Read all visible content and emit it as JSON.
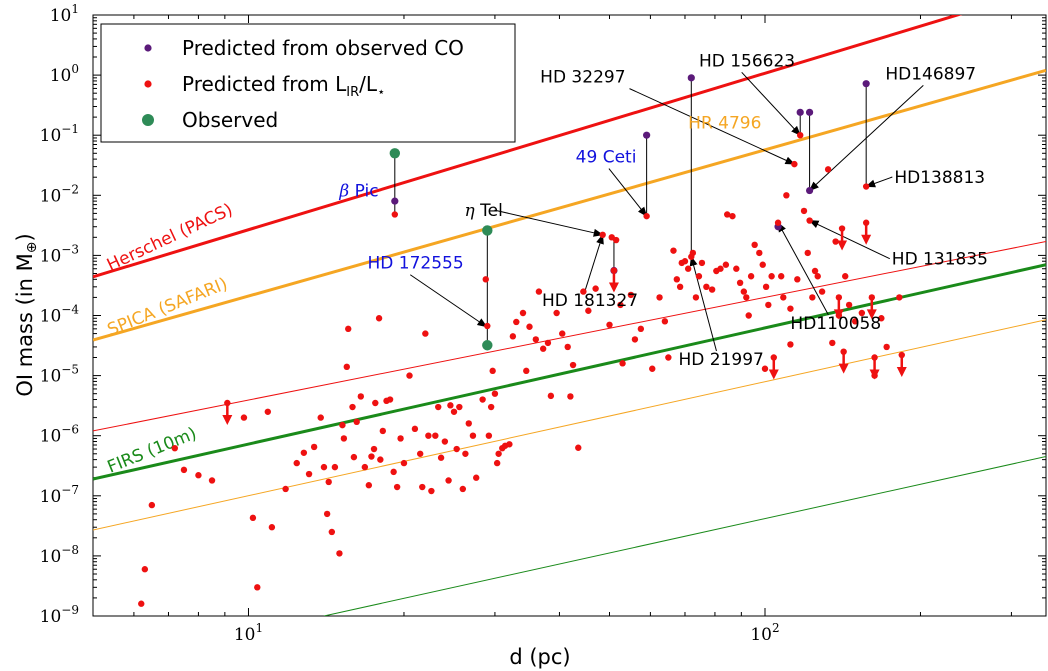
{
  "chart_data": {
    "type": "scatter",
    "xlabel": "d (pc)",
    "ylabel": "OI mass (in M",
    "ylabel_symbol": "⊕",
    "ylabel_close": ")",
    "xscale": "log",
    "yscale": "log",
    "xlim": [
      5.0,
      350.0
    ],
    "ylim": [
      1e-09,
      10
    ],
    "x_tick_labels": [
      {
        "value": 10,
        "mant": "10",
        "exp": "1"
      },
      {
        "value": 100,
        "mant": "10",
        "exp": "2"
      }
    ],
    "y_tick_labels": [
      {
        "value": 1e-09,
        "mant": "10",
        "exp": "−9"
      },
      {
        "value": 1e-08,
        "mant": "10",
        "exp": "−8"
      },
      {
        "value": 1e-07,
        "mant": "10",
        "exp": "−7"
      },
      {
        "value": 1e-06,
        "mant": "10",
        "exp": "−6"
      },
      {
        "value": 1e-05,
        "mant": "10",
        "exp": "−5"
      },
      {
        "value": 0.0001,
        "mant": "10",
        "exp": "−4"
      },
      {
        "value": 0.001,
        "mant": "10",
        "exp": "−3"
      },
      {
        "value": 0.01,
        "mant": "10",
        "exp": "−2"
      },
      {
        "value": 0.1,
        "mant": "10",
        "exp": "−1"
      },
      {
        "value": 1,
        "mant": "10",
        "exp": "0"
      },
      {
        "value": 10,
        "mant": "10",
        "exp": "1"
      }
    ],
    "colors": {
      "red": "#ee1111",
      "purple": "#5b1a7a",
      "green": "#2e8b57",
      "orange": "#f5a623",
      "dkgreen": "#1a8a1a",
      "blue": "#1111dd"
    },
    "legend": {
      "placement": "top-left",
      "entries": [
        {
          "label": "Predicted from observed CO",
          "color": "#5b1a7a",
          "size": "small"
        },
        {
          "label_pre": "Predicted from L",
          "label_sub": "IR",
          "label_post": "/L",
          "label_sub2": "⋆",
          "color": "#ee1111",
          "size": "small"
        },
        {
          "label": "Observed",
          "color": "#2e8b57",
          "size": "large"
        }
      ]
    },
    "sensitivity_lines": [
      {
        "name": "Herschel (PACS)",
        "color": "#ee1111",
        "width": 3,
        "points": [
          [
            5.0,
            0.00044
          ],
          [
            350.0,
            28.0
          ]
        ]
      },
      {
        "name": "SPICA (SAFARI)",
        "color": "#f5a623",
        "width": 3,
        "points": [
          [
            5.0,
            3.9e-05
          ],
          [
            350.0,
            1.2
          ]
        ]
      },
      {
        "name": "FIRS (10m)",
        "color": "#1a8a1a",
        "width": 3,
        "points": [
          [
            5.0,
            1.9e-07
          ],
          [
            350.0,
            0.0007
          ]
        ]
      },
      {
        "name": "",
        "color": "#ee1111",
        "width": 1,
        "points": [
          [
            5.0,
            1.2e-06
          ],
          [
            350.0,
            0.0017
          ]
        ]
      },
      {
        "name": "",
        "color": "#f5a623",
        "width": 1,
        "points": [
          [
            5.0,
            2.7e-08
          ],
          [
            350.0,
            8.5e-05
          ]
        ]
      },
      {
        "name": "",
        "color": "#1a8a1a",
        "width": 1,
        "points": [
          [
            14.0,
            1e-09
          ],
          [
            350.0,
            4.5e-07
          ]
        ]
      }
    ],
    "curve_labels": [
      {
        "text": "Herschel (PACS)",
        "color": "#ee1111",
        "x": 5.4,
        "y": 0.00055,
        "angle": -25
      },
      {
        "text": "SPICA (SAFARI)",
        "color": "#f5a623",
        "x": 5.4,
        "y": 4.6e-05,
        "angle": -22
      },
      {
        "text": "FIRS (10m)",
        "color": "#1a8a1a",
        "x": 5.4,
        "y": 2.4e-07,
        "angle": -22
      }
    ],
    "connectors": [
      {
        "x": 19.2,
        "y1": 0.0048,
        "y2": 0.05
      },
      {
        "x": 29.0,
        "y1": 3.2e-05,
        "y2": 0.0026
      },
      {
        "x": 51.0,
        "y1": 0.00056,
        "y2": 0.0021
      },
      {
        "x": 59.0,
        "y1": 0.0045,
        "y2": 0.1
      },
      {
        "x": 72.0,
        "y1": 0.00095,
        "y2": 0.9
      },
      {
        "x": 117.0,
        "y1": 0.1,
        "y2": 0.24
      },
      {
        "x": 122.0,
        "y1": 0.012,
        "y2": 0.24
      },
      {
        "x": 157.0,
        "y1": 0.014,
        "y2": 0.72
      }
    ],
    "series": [
      {
        "name": "Predicted from observed CO",
        "marker": "purple",
        "points": [
          [
            19.2,
            0.008
          ],
          [
            59.0,
            0.1
          ],
          [
            72.0,
            0.9
          ],
          [
            51.0,
            0.00056
          ],
          [
            117.0,
            0.24
          ],
          [
            122.0,
            0.24
          ],
          [
            122.0,
            0.012
          ],
          [
            157.0,
            0.72
          ],
          [
            106.0,
            0.003
          ]
        ]
      },
      {
        "name": "Observed",
        "marker": "green",
        "points": [
          [
            19.2,
            0.05
          ],
          [
            29.0,
            0.0026
          ],
          [
            29.0,
            3.2e-05
          ]
        ]
      },
      {
        "name": "Predicted from LIR/L⋆",
        "marker": "red",
        "points": [
          [
            6.2,
            1.6e-09
          ],
          [
            6.3,
            6e-09
          ],
          [
            6.5,
            7e-08
          ],
          [
            7.2,
            6.2e-07
          ],
          [
            7.5,
            2.7e-07
          ],
          [
            8.0,
            2.2e-07
          ],
          [
            8.5,
            1.8e-07
          ],
          [
            9.8,
            2e-06
          ],
          [
            10.2,
            4.3e-08
          ],
          [
            10.4,
            3e-09
          ],
          [
            10.9,
            2.5e-06
          ],
          [
            11.1,
            3e-08
          ],
          [
            11.8,
            1.3e-07
          ],
          [
            12.4,
            3.5e-07
          ],
          [
            12.8,
            5.2e-07
          ],
          [
            13.1,
            2.3e-07
          ],
          [
            13.4,
            6.5e-07
          ],
          [
            13.8,
            2e-06
          ],
          [
            14.0,
            3e-07
          ],
          [
            14.2,
            5e-08
          ],
          [
            14.3,
            1.7e-07
          ],
          [
            14.5,
            2.5e-08
          ],
          [
            14.7,
            3e-07
          ],
          [
            15.0,
            1.1e-08
          ],
          [
            15.2,
            1.5e-06
          ],
          [
            15.3,
            9e-07
          ],
          [
            15.5,
            1.4e-05
          ],
          [
            15.6,
            6e-05
          ],
          [
            15.9,
            3e-06
          ],
          [
            16.0,
            4.4e-07
          ],
          [
            16.2,
            1.7e-06
          ],
          [
            16.5,
            4.5e-06
          ],
          [
            16.8,
            3e-07
          ],
          [
            17.1,
            1.5e-07
          ],
          [
            17.3,
            4.5e-07
          ],
          [
            17.5,
            6e-07
          ],
          [
            17.6,
            3.5e-06
          ],
          [
            17.9,
            9e-05
          ],
          [
            18.0,
            4e-07
          ],
          [
            18.2,
            1.2e-06
          ],
          [
            18.5,
            3.8e-06
          ],
          [
            18.8,
            4e-06
          ],
          [
            19.1,
            2.5e-07
          ],
          [
            19.2,
            0.0048
          ],
          [
            19.4,
            1.4e-07
          ],
          [
            19.7,
            9e-07
          ],
          [
            20.0,
            3.5e-07
          ],
          [
            20.5,
            1e-05
          ],
          [
            21.0,
            1.3e-06
          ],
          [
            21.5,
            5e-07
          ],
          [
            21.7,
            1.4e-07
          ],
          [
            22.0,
            5e-05
          ],
          [
            22.3,
            1e-06
          ],
          [
            22.6,
            1.2e-07
          ],
          [
            23.0,
            1e-06
          ],
          [
            23.3,
            3e-06
          ],
          [
            23.6,
            4.3e-07
          ],
          [
            24.0,
            8e-07
          ],
          [
            24.4,
            1.8e-07
          ],
          [
            24.6,
            3.2e-06
          ],
          [
            25.0,
            2.5e-06
          ],
          [
            25.3,
            6e-07
          ],
          [
            25.6,
            3e-06
          ],
          [
            26.0,
            1.3e-07
          ],
          [
            26.3,
            5e-07
          ],
          [
            26.7,
            1.6e-06
          ],
          [
            27.2,
            1e-06
          ],
          [
            27.6,
            2e-07
          ],
          [
            28.4,
            4e-06
          ],
          [
            28.8,
            0.0004
          ],
          [
            29.0,
            6.7e-05
          ],
          [
            29.2,
            1e-06
          ],
          [
            29.5,
            3e-06
          ],
          [
            29.7,
            1.2e-05
          ],
          [
            30.0,
            5e-06
          ],
          [
            30.3,
            3.5e-07
          ],
          [
            30.5,
            5e-07
          ],
          [
            31.0,
            6.2e-07
          ],
          [
            31.4,
            6.8e-07
          ],
          [
            32.0,
            7.2e-07
          ],
          [
            32.5,
            4.5e-05
          ],
          [
            33.0,
            7.8e-05
          ],
          [
            34.0,
            0.00011
          ],
          [
            34.5,
            1.2e-05
          ],
          [
            35.0,
            6.5e-05
          ],
          [
            36.0,
            4e-05
          ],
          [
            36.5,
            0.00025
          ],
          [
            37.2,
            2.8e-05
          ],
          [
            38.0,
            3.5e-05
          ],
          [
            38.5,
            4.6e-06
          ],
          [
            39.5,
            0.00011
          ],
          [
            40.5,
            5e-05
          ],
          [
            41.5,
            3e-05
          ],
          [
            42.0,
            4.5e-06
          ],
          [
            42.5,
            1.5e-05
          ],
          [
            43.5,
            6.3e-07
          ],
          [
            44.5,
            0.00025
          ],
          [
            45.5,
            0.00012
          ],
          [
            47.0,
            0.00028
          ],
          [
            48.5,
            0.0022
          ],
          [
            50.0,
            7e-05
          ],
          [
            50.5,
            0.002
          ],
          [
            51.5,
            0.0018
          ],
          [
            52.5,
            0.00015
          ],
          [
            53.0,
            1.6e-05
          ],
          [
            55.0,
            0.00022
          ],
          [
            56.0,
            4e-05
          ],
          [
            57.5,
            6e-05
          ],
          [
            59.0,
            0.0045
          ],
          [
            60.5,
            1.3e-05
          ],
          [
            62.5,
            0.0002
          ],
          [
            64.0,
            8e-05
          ],
          [
            65.0,
            2e-05
          ],
          [
            66.5,
            0.0012
          ],
          [
            67.5,
            0.0004
          ],
          [
            68.5,
            0.0003
          ],
          [
            69.0,
            0.00075
          ],
          [
            70.0,
            0.0008
          ],
          [
            71.0,
            0.0006
          ],
          [
            72.0,
            0.00095
          ],
          [
            72.5,
            0.0011
          ],
          [
            73.5,
            0.0002
          ],
          [
            74.5,
            0.00045
          ],
          [
            75.5,
            0.00075
          ],
          [
            77.0,
            0.0003
          ],
          [
            79.0,
            0.00027
          ],
          [
            80.5,
            0.00055
          ],
          [
            82.0,
            0.0006
          ],
          [
            84.0,
            0.0007
          ],
          [
            84.5,
            0.0048
          ],
          [
            86.5,
            0.0045
          ],
          [
            88.0,
            0.0006
          ],
          [
            89.5,
            0.00035
          ],
          [
            91.0,
            0.00025
          ],
          [
            92.0,
            0.0002
          ],
          [
            93.0,
            0.0001
          ],
          [
            94.0,
            0.00045
          ],
          [
            95.5,
            0.0015
          ],
          [
            97.5,
            0.0011
          ],
          [
            99.0,
            0.0007
          ],
          [
            100.5,
            0.0003
          ],
          [
            101.5,
            0.00015
          ],
          [
            103.0,
            0.00045
          ],
          [
            106.0,
            0.0035
          ],
          [
            107.5,
            0.00045
          ],
          [
            108.5,
            0.0002
          ],
          [
            110.0,
            0.01
          ],
          [
            112.0,
            0.00013
          ],
          [
            114.0,
            0.033
          ],
          [
            115.5,
            0.0004
          ],
          [
            117.0,
            0.1
          ],
          [
            119.0,
            0.0055
          ],
          [
            121.0,
            0.0011
          ],
          [
            122.0,
            0.0038
          ],
          [
            123.5,
            0.0002
          ],
          [
            125.0,
            0.00055
          ],
          [
            126.5,
            0.00045
          ],
          [
            129.0,
            0.00025
          ],
          [
            132.5,
            0.027
          ],
          [
            135.0,
            3.5e-05
          ],
          [
            137.0,
            0.0017
          ],
          [
            139.0,
            0.0001
          ],
          [
            143.0,
            0.00045
          ],
          [
            145.5,
            0.00015
          ],
          [
            149.5,
            8e-05
          ],
          [
            154.0,
            0.00011
          ],
          [
            157.0,
            0.014
          ],
          [
            163.0,
            1e-05
          ],
          [
            168.0,
            9e-05
          ],
          [
            172.0,
            3e-05
          ],
          [
            182.0,
            0.0002
          ],
          [
            112.0,
            3.3e-05
          ],
          [
            100.0,
            1.3e-05
          ]
        ]
      }
    ],
    "upper_limits": [
      [
        9.1,
        3.5e-06
      ],
      [
        51.0,
        0.00056
      ],
      [
        104.0,
        2e-05
      ],
      [
        139.0,
        0.0002
      ],
      [
        141.0,
        0.0028
      ],
      [
        142.0,
        2.5e-05
      ],
      [
        157.0,
        0.0035
      ],
      [
        161.0,
        0.0002
      ],
      [
        163.0,
        2e-05
      ],
      [
        184.0,
        2.2e-05
      ]
    ],
    "annotations": [
      {
        "text": "HD 32297",
        "color": "#000",
        "anchor": "end",
        "tx": 53.7,
        "ty": 0.75,
        "ax": 114.0,
        "ay": 0.033
      },
      {
        "text": "HD 156623",
        "color": "#000",
        "anchor": "start",
        "tx": 74.5,
        "ty": 1.4,
        "ax": 117.0,
        "ay": 0.1
      },
      {
        "text": "HD146897",
        "color": "#000",
        "anchor": "start",
        "tx": 171.0,
        "ty": 0.85,
        "ax": 122.0,
        "ay": 0.012
      },
      {
        "text": "HD138813",
        "color": "#000",
        "anchor": "start",
        "tx": 178.0,
        "ty": 0.016,
        "ax": 157.0,
        "ay": 0.014
      },
      {
        "text": "HD 131835",
        "color": "#000",
        "anchor": "start",
        "tx": 176.0,
        "ty": 0.0007,
        "ax": 122.0,
        "ay": 0.0038
      },
      {
        "text": "HD110058",
        "color": "#000",
        "anchor": "start",
        "tx": 112.0,
        "ty": 6e-05,
        "ax": 106.0,
        "ay": 0.0035
      },
      {
        "text": "HD 21997",
        "color": "#000",
        "anchor": "start",
        "tx": 68.0,
        "ty": 1.5e-05,
        "ax": 72.0,
        "ay": 0.00095
      },
      {
        "text": "HD 181327",
        "color": "#000",
        "anchor": "start",
        "tx": 37.0,
        "ty": 0.000145,
        "ax": 48.5,
        "ay": 0.0022
      },
      {
        "text": "Tel",
        "pre": "η",
        "color": "#000",
        "anchor": "start",
        "tx": 26.2,
        "ty": 0.0045,
        "ax": 48.5,
        "ay": 0.0022
      },
      {
        "text": "HD 172555",
        "color": "#1111dd",
        "anchor": "start",
        "tx": 17.0,
        "ty": 0.0006,
        "ax": 28.9,
        "ay": 6.5e-05
      },
      {
        "text": "49 Ceti",
        "color": "#1111dd",
        "anchor": "start",
        "tx": 43.0,
        "ty": 0.035,
        "ax": 59.0,
        "ay": 0.0045
      },
      {
        "text": "Pic",
        "pre": "β",
        "color": "#1111dd",
        "anchor": "start",
        "tx": 15.0,
        "ty": 0.0095,
        "ax": null,
        "ay": null
      },
      {
        "text": "HR 4796",
        "color": "#f5a623",
        "anchor": "start",
        "tx": 71.0,
        "ty": 0.13,
        "ax": null,
        "ay": null
      }
    ]
  }
}
